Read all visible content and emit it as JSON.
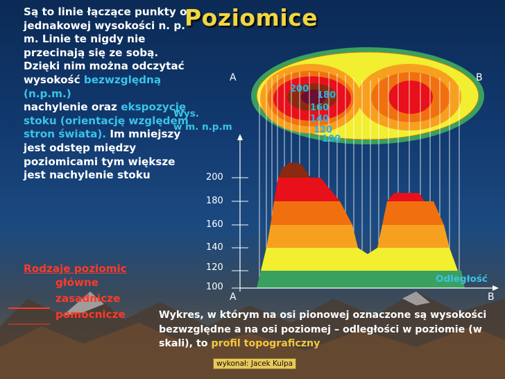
{
  "title": "Poziomice",
  "left_text": {
    "p1_a": "Są to linie łączące punkty o jednakowej wysokości n. p. m. Linie te nigdy nie przecinają się ze sobą. Dzięki nim można odczytać wysokość ",
    "p1_hl": "bezwzględną (n.p.m.)",
    "p2_a": "nachylenie oraz ",
    "p2_hl": "ekspozycję stoku (orientację względem stron świata).",
    "p2_b": " Im mniejszy jest odstęp między poziomicami tym większe jest nachylenie stoku"
  },
  "types": {
    "heading": "Rodzaje poziomic",
    "items": [
      "główne",
      "zasadnicze",
      "pomocnicze"
    ]
  },
  "map": {
    "label_a": "A",
    "label_b": "B",
    "contour_labels": [
      "200",
      "180",
      "160",
      "140",
      "120",
      "100"
    ]
  },
  "profile": {
    "ylabel_line1": "Wys.",
    "ylabel_line2": "w m. n.p.m",
    "xlabel": "Odległość",
    "label_a": "A",
    "label_b": "B",
    "ticks": [
      "200",
      "180",
      "160",
      "140",
      "120",
      "100"
    ]
  },
  "bottom_text": {
    "a": "Wykres, w którym na osi pionowej oznaczone są wysokości bezwzględne a na osi poziomej – odległości w poziomie (w skali), to ",
    "hl": "profil topograficzny"
  },
  "footer": "wykonał: Jacek Kulpa",
  "colors": {
    "title": "#f2d640",
    "highlight": "#39c4e8",
    "types": "#ff3a2a",
    "band_100": "#3aa060",
    "band_120": "#f2ee30",
    "band_140": "#f7a020",
    "band_160": "#f07010",
    "band_180": "#e8101a",
    "band_200": "#8b2a10",
    "peak": "#6a0f30"
  }
}
